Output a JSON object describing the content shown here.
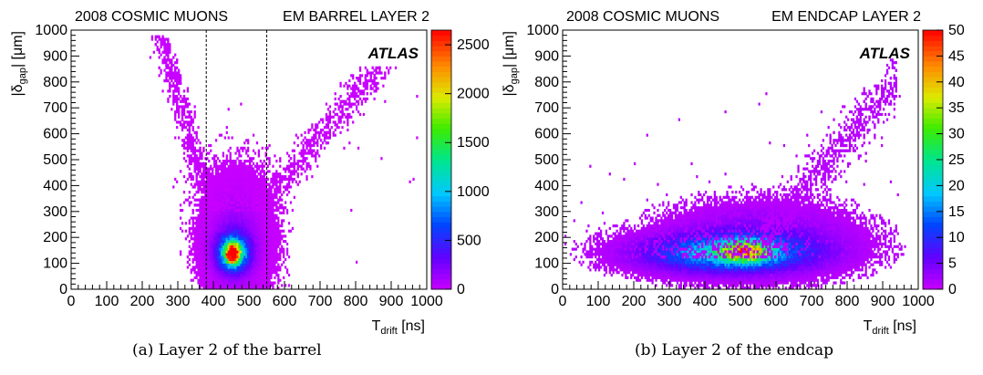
{
  "chart_data": [
    {
      "type": "heatmap",
      "header_left": "2008 COSMIC MUONS",
      "header_right": "EM BARREL LAYER 2",
      "watermark": "ATLAS",
      "xlabel_main": "T",
      "xlabel_sub": "drift",
      "xlabel_unit": "[ns]",
      "ylabel_main": "|δ",
      "ylabel_sub": "gap",
      "ylabel_unit": "| [μm]",
      "xlim": [
        0,
        1000
      ],
      "ylim": [
        0,
        1000
      ],
      "xticks": [
        0,
        100,
        200,
        300,
        400,
        500,
        600,
        700,
        800,
        900,
        1000
      ],
      "yticks": [
        0,
        100,
        200,
        300,
        400,
        500,
        600,
        700,
        800,
        900,
        1000
      ],
      "zlim": [
        0,
        2650
      ],
      "zticks": [
        0,
        500,
        1000,
        1500,
        2000,
        2500
      ],
      "cut_lines_x": [
        380,
        550
      ],
      "peak": {
        "x": 455,
        "y": 140,
        "value": 2600
      },
      "caption": "(a) Layer 2 of the barrel"
    },
    {
      "type": "heatmap",
      "header_left": "2008 COSMIC MUONS",
      "header_right": "EM ENDCAP LAYER 2",
      "watermark": "ATLAS",
      "xlabel_main": "T",
      "xlabel_sub": "drift",
      "xlabel_unit": "[ns]",
      "ylabel_main": "|δ",
      "ylabel_sub": "gap",
      "ylabel_unit": "| [μm]",
      "xlim": [
        0,
        1000
      ],
      "ylim": [
        0,
        1000
      ],
      "xticks": [
        0,
        100,
        200,
        300,
        400,
        500,
        600,
        700,
        800,
        900,
        1000
      ],
      "yticks": [
        0,
        100,
        200,
        300,
        400,
        500,
        600,
        700,
        800,
        900,
        1000
      ],
      "zlim": [
        0,
        50
      ],
      "zticks": [
        0,
        5,
        10,
        15,
        20,
        25,
        30,
        35,
        40,
        45,
        50
      ],
      "cut_lines_x": [],
      "peak": {
        "x": 510,
        "y": 145,
        "value": 45
      },
      "caption": "(b) Layer 2 of the endcap"
    }
  ]
}
